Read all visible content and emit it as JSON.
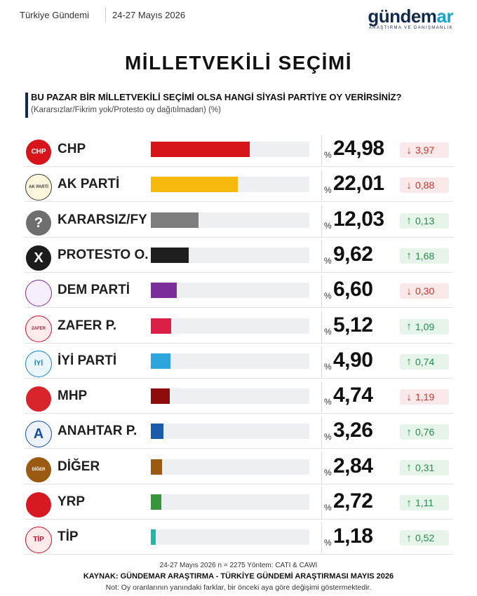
{
  "header": {
    "brand": "Türkiye Gündemi",
    "dates": "24-27 Mayıs 2026",
    "logo_main": "gündem",
    "logo_accent": "ar",
    "logo_sub": "ARAŞTIRMA VE DANIŞMANLIK"
  },
  "title": "MİLLETVEKİLİ SEÇİMİ",
  "question": "BU PAZAR BİR MİLLETVEKİLİ SEÇİMİ OLSA HANGİ SİYASİ PARTİYE OY VERİRSİNİZ?",
  "subnote": "(Kararsızlar/Fikrim yok/Protesto oy dağıtılmadan) (%)",
  "percent_symbol": "%",
  "chart_data": {
    "type": "bar",
    "orientation": "horizontal",
    "title": "MİLLETVEKİLİ SEÇİMİ",
    "unit": "%",
    "xlim": [
      0,
      40
    ],
    "categories": [
      "CHP",
      "AK PARTİ",
      "KARARSIZ/FY",
      "PROTESTO O.",
      "DEM PARTİ",
      "ZAFER P.",
      "İYİ PARTİ",
      "MHP",
      "ANAHTAR P.",
      "DİĞER",
      "YRP",
      "TİP"
    ],
    "values": [
      24.98,
      22.01,
      12.03,
      9.62,
      6.6,
      5.12,
      4.9,
      4.74,
      3.26,
      2.84,
      2.72,
      1.18
    ],
    "value_labels": [
      "24,98",
      "22,01",
      "12,03",
      "9,62",
      "6,60",
      "5,12",
      "4,90",
      "4,74",
      "3,26",
      "2,84",
      "2,72",
      "1,18"
    ],
    "changes": [
      -3.97,
      -0.88,
      0.13,
      1.68,
      -0.3,
      1.09,
      0.74,
      -1.19,
      0.76,
      0.31,
      1.11,
      0.52
    ],
    "change_labels": [
      "3,97",
      "0,88",
      "0,13",
      "1,68",
      "0,30",
      "1,09",
      "0,74",
      "1,19",
      "0,76",
      "0,31",
      "1,11",
      "0,52"
    ],
    "colors": [
      "#d7141a",
      "#f8b90d",
      "#7d7d7d",
      "#1f1f1f",
      "#7b2d9a",
      "#dc1f47",
      "#2ea4dc",
      "#8f0c0c",
      "#1a5aa8",
      "#9a5a12",
      "#37953a",
      "#23b4a6"
    ],
    "logos": [
      {
        "icon": "chp-logo-icon",
        "bg": "#d7141a",
        "text": "CHP",
        "fg": "#ffffff"
      },
      {
        "icon": "ak-parti-logo-icon",
        "bg": "#fdf6dc",
        "text": "AK PARTİ",
        "fg": "#3a3a3a"
      },
      {
        "icon": "question-mark-icon",
        "bg": "#6e6e6e",
        "text": "?",
        "fg": "#ffffff"
      },
      {
        "icon": "x-mark-icon",
        "bg": "#1c1c1c",
        "text": "X",
        "fg": "#ffffff"
      },
      {
        "icon": "dem-parti-logo-icon",
        "bg": "#f6eefb",
        "text": "",
        "fg": "#7b2d9a"
      },
      {
        "icon": "zafer-logo-icon",
        "bg": "#fdeaea",
        "text": "ZAFER",
        "fg": "#c8102e"
      },
      {
        "icon": "iyi-parti-logo-icon",
        "bg": "#eaf6fc",
        "text": "İYİ",
        "fg": "#1a80c2"
      },
      {
        "icon": "mhp-logo-icon",
        "bg": "#d9232a",
        "text": "",
        "fg": "#ffffff"
      },
      {
        "icon": "anahtar-logo-icon",
        "bg": "#eef3fb",
        "text": "A",
        "fg": "#1a4f9c"
      },
      {
        "icon": "diger-logo-icon",
        "bg": "#9a5a12",
        "text": "DİĞER",
        "fg": "#ffffff"
      },
      {
        "icon": "yrp-logo-icon",
        "bg": "#d71a21",
        "text": "",
        "fg": "#ffffff"
      },
      {
        "icon": "tip-logo-icon",
        "bg": "#fdeaea",
        "text": "TİP",
        "fg": "#c8102e"
      }
    ]
  },
  "footer": {
    "method": "24-27 Mayıs 2026 n = 2275 Yöntem: CATI & CAWI",
    "source": "KAYNAK: GÜNDEMAR ARAŞTIRMA - TÜRKİYE GÜNDEMİ ARAŞTIRMASI MAYIS 2026",
    "note": "Not: Oy oranlarının yanındaki farklar, bir önceki aya göre değişimi göstermektedir."
  }
}
